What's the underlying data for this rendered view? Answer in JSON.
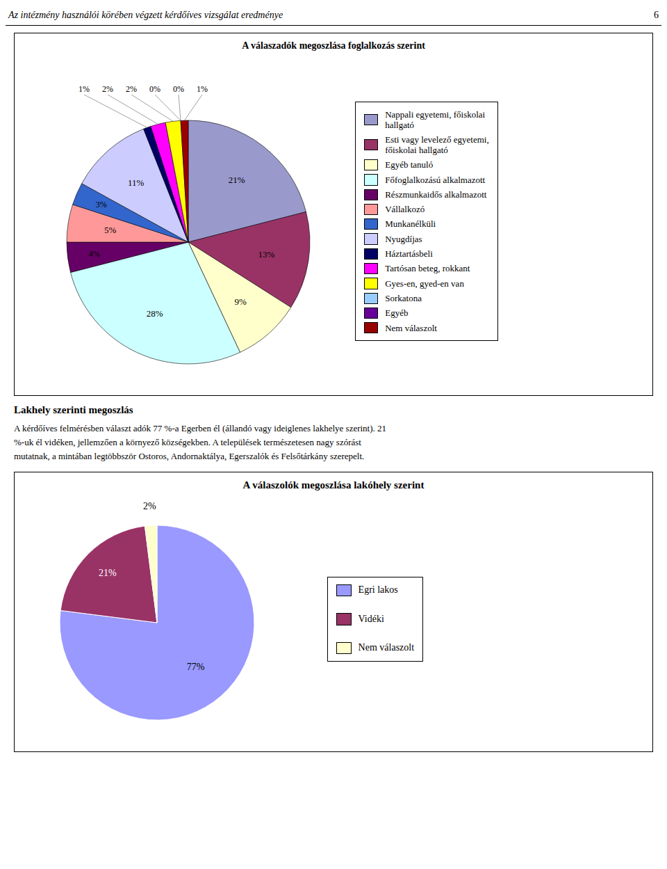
{
  "chart_data": [
    {
      "type": "pie",
      "title": "A válaszadók megoszlása foglalkozás szerint",
      "annotations": [
        "Az intézmény használói körében végzett kérdőíves vizsgálat eredménye",
        "6"
      ],
      "categories": [
        "Nappali egyetemi, főiskolai\nhallgató",
        "Esti vagy levelező egyetemi,\nfőiskolai hallgató",
        "Egyéb tanuló",
        "Főfoglalkozású alkalmazott",
        "Részmunkaidős alkalmazott",
        "Vállalkozó",
        "Munkanélküli",
        "Nyugdíjas",
        "Háztartásbeli",
        "Tartósan beteg, rokkant",
        "Gyes-en, gyed-en van",
        "Sorkatona",
        "Egyéb",
        "Nem válaszolt"
      ],
      "values": [
        21,
        13,
        9,
        28,
        4,
        5,
        3,
        11,
        1,
        2,
        2,
        0,
        0,
        1
      ],
      "value_labels": [
        "21%",
        "13%",
        "9%",
        "28%",
        "4%",
        "5%",
        "3%",
        "11%",
        "1%",
        "2%",
        "2%",
        "0%",
        "0%",
        "1%"
      ],
      "colors": [
        "#9999CC",
        "#993366",
        "#FFFFCC",
        "#CCFFFF",
        "#660066",
        "#FF9999",
        "#3366CC",
        "#CCCCFF",
        "#000066",
        "#FF00FF",
        "#FFFF00",
        "#99CCFF",
        "#660099",
        "#990000"
      ],
      "data_labels": true,
      "legend": "right"
    },
    {
      "type": "pie",
      "title": "A válaszolók megoszlása lakóhely szerint",
      "annotations": [
        "Lakhely szerinti megoszlás",
        "A kérdőíves felmérésben választ adók 77 %-a Egerben él (állandó vagy ideiglenes lakhelye szerint). 21",
        "%-uk él vidéken, jellemzően a környező községekben. A települések természetesen nagy szórást",
        "mutatnak, a mintában legtöbbször Ostoros, Andornaktálya, Egerszalók és Felsőtárkány szerepelt."
      ],
      "categories": [
        "Egri lakos",
        "Vidéki",
        "Nem válaszolt"
      ],
      "values": [
        77,
        21,
        2
      ],
      "value_labels": [
        "77%",
        "21%",
        "2%"
      ],
      "colors": [
        "#9999FF",
        "#993366",
        "#FFFFCC"
      ],
      "data_labels": true,
      "legend": "right"
    }
  ]
}
